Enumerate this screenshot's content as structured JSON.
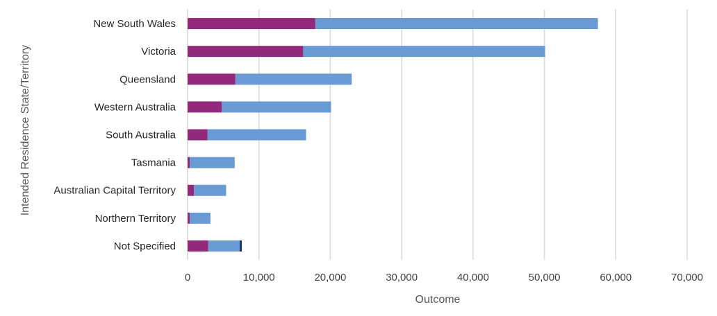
{
  "chart_data": {
    "type": "bar",
    "orientation": "horizontal",
    "stacked": true,
    "title": "",
    "xlabel": "Outcome",
    "ylabel": "Intended Residence State/Territory",
    "xlim": [
      0,
      70000
    ],
    "xticks": [
      0,
      10000,
      20000,
      30000,
      40000,
      50000,
      60000,
      70000
    ],
    "xtick_labels": [
      "0",
      "10,000",
      "20,000",
      "30,000",
      "40,000",
      "50,000",
      "60,000",
      "70,000"
    ],
    "grid": true,
    "legend": "none",
    "categories": [
      "New South Wales",
      "Victoria",
      "Queensland",
      "Western Australia",
      "South Australia",
      "Tasmania",
      "Australian Capital Territory",
      "Northern Territory",
      "Not Specified"
    ],
    "series": [
      {
        "color": "#93297b",
        "values": [
          17900,
          16200,
          6700,
          4800,
          2800,
          300,
          900,
          300,
          2900
        ]
      },
      {
        "color": "#6a9ad4",
        "values": [
          39600,
          33900,
          16300,
          15300,
          13800,
          6300,
          4500,
          2900,
          4400
        ]
      },
      {
        "color": "#1f3a6e",
        "values": [
          0,
          0,
          0,
          0,
          0,
          0,
          0,
          0,
          300
        ]
      }
    ]
  }
}
